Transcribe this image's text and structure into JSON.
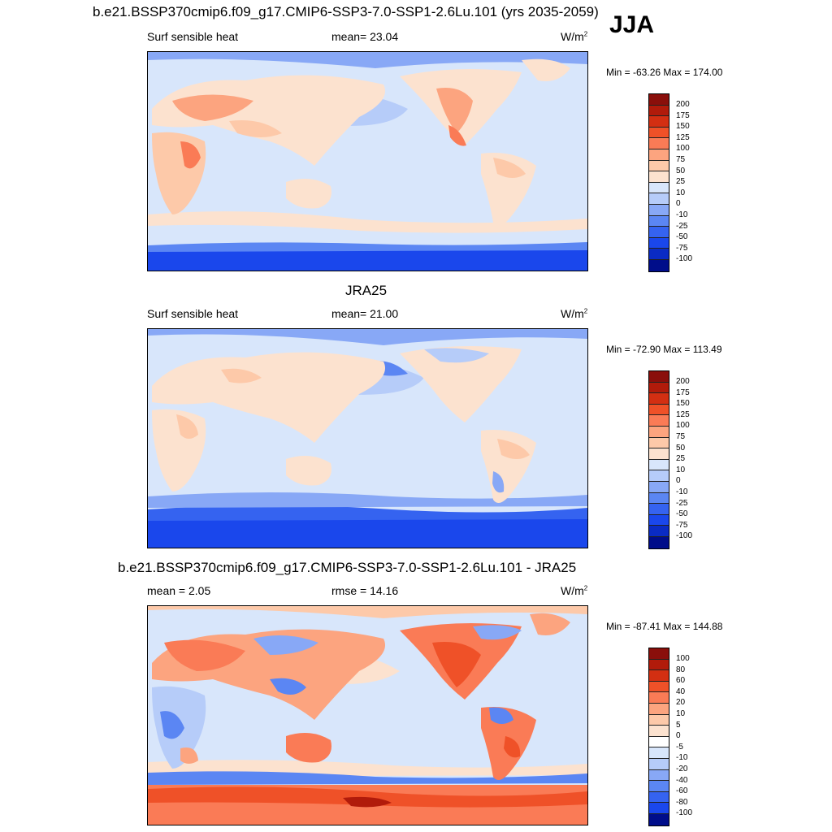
{
  "season": "JJA",
  "colors": {
    "full": [
      "#000d8a",
      "#0a2bc4",
      "#1a47ec",
      "#3563f0",
      "#5b86f3",
      "#88a8f6",
      "#b6ccf9",
      "#d8e6fb",
      "#fce2cf",
      "#fdc9a9",
      "#fca47f",
      "#fa7b56",
      "#ef5128",
      "#d32f12",
      "#b11b0b",
      "#8a0f0b"
    ],
    "diff": [
      "#000d8a",
      "#0a2bc4",
      "#1a47ec",
      "#3563f0",
      "#5b86f3",
      "#88a8f6",
      "#b6ccf9",
      "#d8e6fb",
      "#ffffff",
      "#fce2cf",
      "#fdc9a9",
      "#fca47f",
      "#fa7b56",
      "#ef5128",
      "#d32f12",
      "#b11b0b",
      "#8a0f0b"
    ]
  },
  "panels": [
    {
      "title": "b.e21.BSSP370cmip6.f09_g17.CMIP6-SSP3-7.0-SSP1-2.6Lu.101 (yrs 2035-2059)",
      "left_label": "Surf sensible heat",
      "center_label": "mean=  23.04",
      "unit": "W/m",
      "unit_sup": "2",
      "minmax": "Min = -63.26 Max = 174.00",
      "colorbar_labels": [
        "200",
        "175",
        "150",
        "125",
        "100",
        "75",
        "50",
        "25",
        "10",
        "0",
        "-10",
        "-25",
        "-50",
        "-75",
        "-100"
      ]
    },
    {
      "title": "JRA25",
      "left_label": "Surf sensible heat",
      "center_label": "mean=  21.00",
      "unit": "W/m",
      "unit_sup": "2",
      "minmax": "Min = -72.90 Max = 113.49",
      "colorbar_labels": [
        "200",
        "175",
        "150",
        "125",
        "100",
        "75",
        "50",
        "25",
        "10",
        "0",
        "-10",
        "-25",
        "-50",
        "-75",
        "-100"
      ]
    },
    {
      "title": "b.e21.BSSP370cmip6.f09_g17.CMIP6-SSP3-7.0-SSP1-2.6Lu.101 - JRA25",
      "left_label": "mean =   2.05",
      "center_label": "rmse =  14.16",
      "unit": "W/m",
      "unit_sup": "2",
      "minmax": "Min = -87.41 Max = 144.88",
      "colorbar_labels": [
        "100",
        "80",
        "60",
        "40",
        "20",
        "10",
        "5",
        "0",
        "-5",
        "-10",
        "-20",
        "-40",
        "-60",
        "-80",
        "-100"
      ]
    }
  ]
}
